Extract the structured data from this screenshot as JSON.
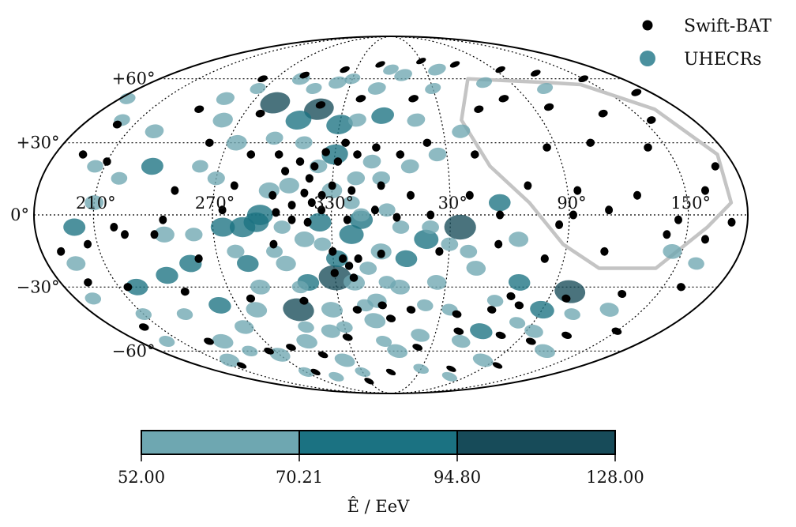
{
  "chart_data": {
    "type": "scatter",
    "projection": "mollweide",
    "grid": true,
    "legend_position": "top-right",
    "legend": [
      {
        "label": "Swift-BAT",
        "color": "#000000",
        "shape": "dot"
      },
      {
        "label": "UHECRs",
        "color": "#4a909e",
        "shape": "dot"
      }
    ],
    "lon_ticks": [
      {
        "lon": 150,
        "label": "150°"
      },
      {
        "lon": 90,
        "label": "90°"
      },
      {
        "lon": 30,
        "label": "30°"
      },
      {
        "lon": -30,
        "label": "330°"
      },
      {
        "lon": -90,
        "label": "270°"
      },
      {
        "lon": -150,
        "label": "210°"
      }
    ],
    "lat_ticks": [
      {
        "lat": 60,
        "label": "+60°"
      },
      {
        "lat": 30,
        "label": "+30°"
      },
      {
        "lat": 0,
        "label": "0°"
      },
      {
        "lat": -30,
        "label": "−30°"
      },
      {
        "lat": -60,
        "label": "−60°"
      }
    ],
    "colorbar": {
      "ticks": [
        "52.00",
        "70.21",
        "94.80",
        "128.00"
      ],
      "colors": [
        "#6ea7b1",
        "#1b7282",
        "#174b59"
      ],
      "label": "Ê / EeV"
    },
    "contour": {
      "color": "#c4c4c4",
      "points": [
        [
          118,
          58
        ],
        [
          60,
          60
        ],
        [
          42,
          40
        ],
        [
          52,
          20
        ],
        [
          70,
          5
        ],
        [
          88,
          -12
        ],
        [
          110,
          -22
        ],
        [
          140,
          -22
        ],
        [
          160,
          -5
        ],
        [
          172,
          5
        ],
        [
          175,
          25
        ],
        [
          165,
          45
        ],
        [
          140,
          57
        ],
        [
          118,
          58
        ]
      ]
    },
    "swift_bat": [
      [
        170,
        53
      ],
      [
        150,
        60
      ],
      [
        120,
        63
      ],
      [
        95,
        65
      ],
      [
        60,
        68
      ],
      [
        30,
        70
      ],
      [
        -10,
        68
      ],
      [
        -40,
        65
      ],
      [
        -70,
        62
      ],
      [
        -100,
        60
      ],
      [
        155,
        40
      ],
      [
        130,
        43
      ],
      [
        100,
        46
      ],
      [
        75,
        50
      ],
      [
        55,
        45
      ],
      [
        15,
        50
      ],
      [
        -20,
        50
      ],
      [
        -45,
        47
      ],
      [
        -80,
        43
      ],
      [
        -120,
        45
      ],
      [
        -160,
        38
      ],
      [
        170,
        20
      ],
      [
        140,
        28
      ],
      [
        110,
        30
      ],
      [
        85,
        28
      ],
      [
        45,
        25
      ],
      [
        20,
        30
      ],
      [
        5,
        25
      ],
      [
        -8,
        28
      ],
      [
        -18,
        25
      ],
      [
        -25,
        30
      ],
      [
        -28,
        22
      ],
      [
        -35,
        26
      ],
      [
        -40,
        20
      ],
      [
        -42,
        15
      ],
      [
        -48,
        22
      ],
      [
        -55,
        18
      ],
      [
        -60,
        25
      ],
      [
        -75,
        25
      ],
      [
        -100,
        30
      ],
      [
        -150,
        22
      ],
      [
        -165,
        25
      ],
      [
        160,
        10
      ],
      [
        125,
        8
      ],
      [
        95,
        10
      ],
      [
        70,
        12
      ],
      [
        40,
        8
      ],
      [
        10,
        8
      ],
      [
        -5,
        12
      ],
      [
        -20,
        10
      ],
      [
        -30,
        12
      ],
      [
        -35,
        8
      ],
      [
        -40,
        5
      ],
      [
        -44,
        9
      ],
      [
        -50,
        4
      ],
      [
        -60,
        8
      ],
      [
        -80,
        12
      ],
      [
        -110,
        10
      ],
      [
        172,
        -3
      ],
      [
        145,
        -2
      ],
      [
        110,
        2
      ],
      [
        92,
        0
      ],
      [
        85,
        -4
      ],
      [
        55,
        0
      ],
      [
        20,
        0
      ],
      [
        3,
        -1
      ],
      [
        -8,
        2
      ],
      [
        -22,
        -2
      ],
      [
        -35,
        2
      ],
      [
        -42,
        -3
      ],
      [
        -50,
        -2
      ],
      [
        -58,
        1
      ],
      [
        -85,
        2
      ],
      [
        -115,
        -2
      ],
      [
        -135,
        -8
      ],
      [
        160,
        -10
      ],
      [
        140,
        -8
      ],
      [
        110,
        -15
      ],
      [
        80,
        -18
      ],
      [
        55,
        -12
      ],
      [
        25,
        -15
      ],
      [
        -5,
        -16
      ],
      [
        -17,
        -18
      ],
      [
        -22,
        -21
      ],
      [
        -25,
        -18
      ],
      [
        -30,
        -24
      ],
      [
        -20,
        -26
      ],
      [
        -30,
        -15
      ],
      [
        -60,
        -12
      ],
      [
        -100,
        -18
      ],
      [
        -120,
        -8
      ],
      [
        -140,
        -5
      ],
      [
        -155,
        -12
      ],
      [
        -170,
        -15
      ],
      [
        160,
        -30
      ],
      [
        130,
        -33
      ],
      [
        100,
        -35
      ],
      [
        75,
        -38
      ],
      [
        68,
        -34
      ],
      [
        60,
        -40
      ],
      [
        40,
        -42
      ],
      [
        12,
        -40
      ],
      [
        0,
        -44
      ],
      [
        -5,
        -38
      ],
      [
        -20,
        -40
      ],
      [
        -50,
        -36
      ],
      [
        -80,
        -35
      ],
      [
        -115,
        -32
      ],
      [
        -145,
        -30
      ],
      [
        -165,
        -28
      ],
      [
        150,
        -50
      ],
      [
        120,
        -52
      ],
      [
        100,
        -55
      ],
      [
        75,
        -52
      ],
      [
        45,
        -50
      ],
      [
        20,
        -58
      ],
      [
        -30,
        -53
      ],
      [
        -55,
        -62
      ],
      [
        -75,
        -58
      ],
      [
        -95,
        -60
      ],
      [
        -130,
        -55
      ],
      [
        -160,
        -48
      ],
      [
        100,
        -68
      ],
      [
        60,
        -70
      ],
      [
        0,
        -72
      ],
      [
        -30,
        -78
      ],
      [
        -80,
        -72
      ],
      [
        -140,
        -68
      ]
    ],
    "uhecrs": [
      [
        -30,
        -26,
        110
      ],
      [
        35,
        -5,
        105
      ],
      [
        -55,
        -40,
        104
      ],
      [
        100,
        -32,
        102
      ],
      [
        -75,
        48,
        101
      ],
      [
        -45,
        45,
        100
      ],
      [
        -30,
        38,
        88
      ],
      [
        -30,
        25,
        87
      ],
      [
        -55,
        40,
        86
      ],
      [
        -66,
        0,
        85
      ],
      [
        -75,
        -5,
        84
      ],
      [
        -68,
        -3,
        82
      ],
      [
        -20,
        -8,
        80
      ],
      [
        18,
        -10,
        80
      ],
      [
        90,
        -40,
        80
      ],
      [
        -85,
        -5,
        79
      ],
      [
        -36,
        -3,
        77
      ],
      [
        -15,
        -2,
        76
      ],
      [
        -5,
        42,
        75
      ],
      [
        60,
        -50,
        75
      ],
      [
        -100,
        -38,
        74
      ],
      [
        -105,
        -20,
        73
      ],
      [
        -120,
        -25,
        73
      ],
      [
        -140,
        -30,
        72
      ],
      [
        -160,
        -5,
        72
      ],
      [
        -125,
        20,
        72
      ],
      [
        -45,
        -28,
        71
      ],
      [
        -75,
        -20,
        71
      ],
      [
        -28,
        -18,
        71
      ],
      [
        8,
        -18,
        71
      ],
      [
        70,
        -28,
        71
      ],
      [
        55,
        5,
        71
      ],
      [
        -20,
        -28,
        70
      ],
      [
        -60,
        -55,
        70
      ],
      [
        -90,
        -62,
        70
      ],
      [
        -120,
        -55,
        70
      ],
      [
        -10,
        -45,
        70
      ],
      [
        -35,
        -40,
        70
      ],
      [
        -80,
        -40,
        69
      ],
      [
        -40,
        -65,
        69
      ],
      [
        5,
        -60,
        69
      ],
      [
        120,
        -60,
        69
      ],
      [
        80,
        -65,
        69
      ],
      [
        -140,
        -65,
        68
      ],
      [
        -5,
        -15,
        67
      ],
      [
        -62,
        10,
        67
      ],
      [
        -85,
        30,
        67
      ],
      [
        -100,
        40,
        66
      ],
      [
        -115,
        -8,
        66
      ],
      [
        -30,
        10,
        66
      ],
      [
        -52,
        12,
        65
      ],
      [
        -44,
        -10,
        65
      ],
      [
        -55,
        -20,
        65
      ],
      [
        -72,
        -30,
        64
      ],
      [
        -95,
        -48,
        64
      ],
      [
        5,
        -30,
        64
      ],
      [
        -8,
        -36,
        63
      ],
      [
        25,
        -28,
        63
      ],
      [
        45,
        -22,
        63
      ],
      [
        65,
        -10,
        63
      ],
      [
        -40,
        -50,
        63
      ],
      [
        20,
        -52,
        62
      ],
      [
        50,
        -55,
        62
      ],
      [
        95,
        -50,
        62
      ],
      [
        130,
        -40,
        62
      ],
      [
        145,
        -15,
        61
      ],
      [
        -165,
        -20,
        61
      ],
      [
        -150,
        5,
        61
      ],
      [
        -135,
        35,
        61
      ],
      [
        -110,
        50,
        60
      ],
      [
        -70,
        60,
        60
      ],
      [
        -40,
        58,
        60
      ],
      [
        -10,
        55,
        60
      ],
      [
        10,
        62,
        60
      ],
      [
        40,
        65,
        60
      ],
      [
        -20,
        40,
        59
      ],
      [
        15,
        40,
        59
      ],
      [
        40,
        35,
        59
      ],
      [
        25,
        25,
        58
      ],
      [
        10,
        20,
        58
      ],
      [
        -10,
        22,
        58
      ],
      [
        -5,
        15,
        57
      ],
      [
        -18,
        15,
        57
      ],
      [
        -38,
        20,
        57
      ],
      [
        -48,
        30,
        56
      ],
      [
        -65,
        32,
        56
      ],
      [
        -90,
        15,
        56
      ],
      [
        -80,
        -15,
        56
      ],
      [
        -100,
        -8,
        56
      ],
      [
        -35,
        -12,
        55
      ],
      [
        -12,
        -22,
        55
      ],
      [
        -2,
        -28,
        55
      ],
      [
        20,
        -5,
        55
      ],
      [
        30,
        -12,
        55
      ],
      [
        40,
        -15,
        55
      ],
      [
        5,
        -5,
        54
      ],
      [
        -2,
        2,
        54
      ],
      [
        -20,
        5,
        54
      ],
      [
        -15,
        0,
        54
      ],
      [
        -55,
        -5,
        54
      ],
      [
        -60,
        -15,
        53
      ],
      [
        -50,
        -30,
        53
      ],
      [
        -15,
        -38,
        53
      ],
      [
        -55,
        -48,
        53
      ],
      [
        -30,
        -48,
        53
      ],
      [
        -5,
        -55,
        52
      ],
      [
        20,
        -38,
        52
      ],
      [
        35,
        -40,
        52
      ],
      [
        60,
        -36,
        52
      ],
      [
        80,
        -46,
        52
      ],
      [
        110,
        -42,
        52
      ],
      [
        160,
        -20,
        52
      ],
      [
        -170,
        -35,
        52
      ],
      [
        -150,
        -42,
        52
      ],
      [
        -160,
        -55,
        52
      ],
      [
        -125,
        -42,
        52
      ],
      [
        -110,
        -60,
        52
      ],
      [
        -90,
        -72,
        52
      ],
      [
        -65,
        -75,
        52
      ],
      [
        -30,
        -72,
        52
      ],
      [
        30,
        -70,
        52
      ],
      [
        70,
        -75,
        52
      ],
      [
        -175,
        50,
        52
      ],
      [
        -160,
        40,
        52
      ],
      [
        -155,
        20,
        52
      ],
      [
        -140,
        15,
        52
      ],
      [
        -100,
        20,
        52
      ],
      [
        -95,
        55,
        52
      ],
      [
        -55,
        55,
        52
      ],
      [
        -30,
        60,
        52
      ],
      [
        0,
        65,
        52
      ],
      [
        30,
        55,
        52
      ],
      [
        70,
        58,
        52
      ],
      [
        110,
        55,
        52
      ]
    ]
  }
}
